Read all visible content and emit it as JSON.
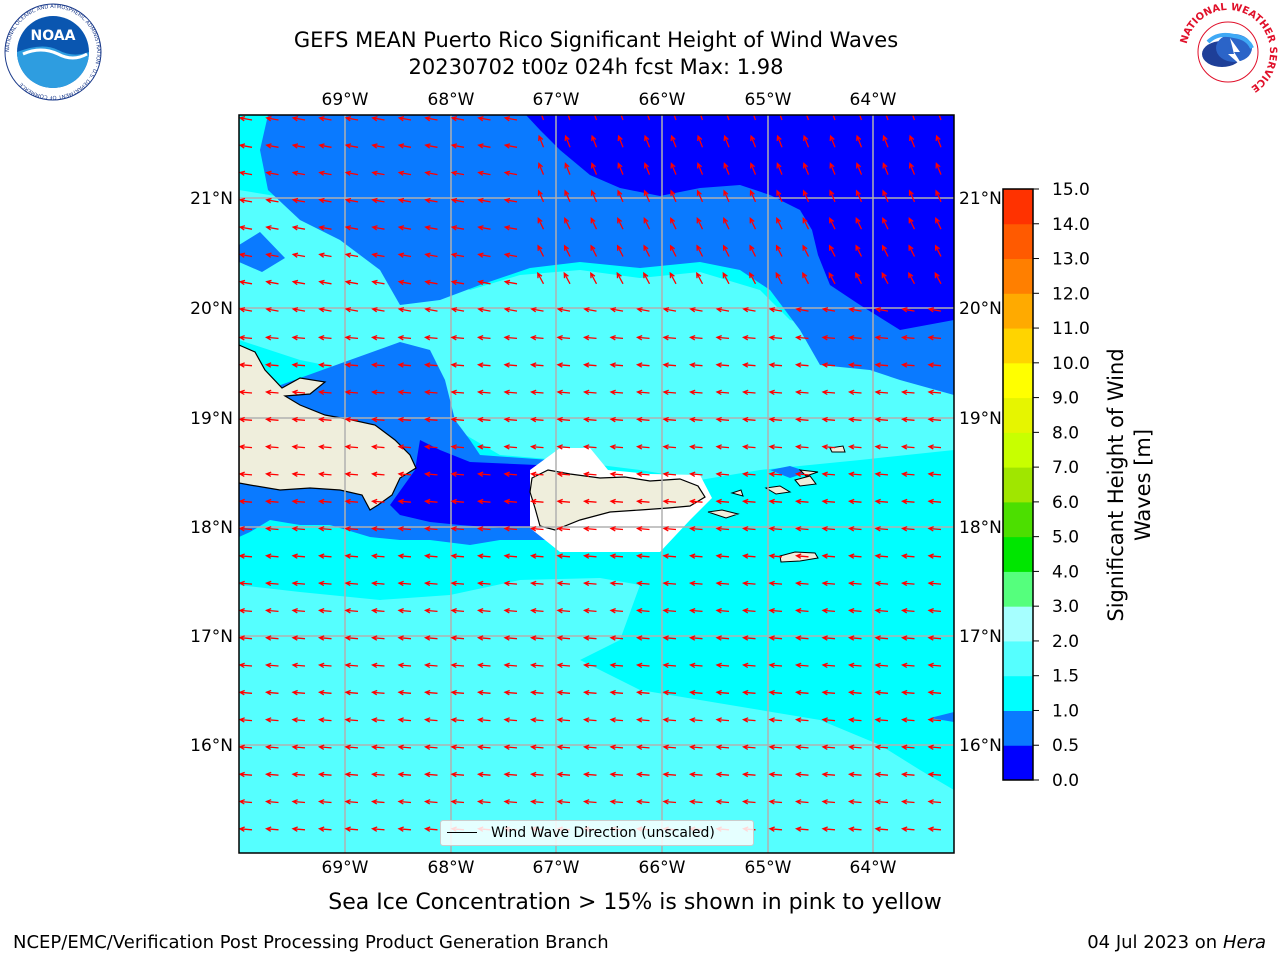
{
  "title_line1": "GEFS MEAN Puerto Rico Significant Height of Wind Waves",
  "title_line2": "20230702 t00z 024h fcst   Max: 1.98",
  "lon_labels": [
    "69°W",
    "68°W",
    "67°W",
    "66°W",
    "65°W",
    "64°W"
  ],
  "lat_labels": [
    "21°N",
    "20°N",
    "19°N",
    "18°N",
    "17°N",
    "16°N"
  ],
  "colorbar": {
    "label": "Significant Height of Wind Waves [m]",
    "label_line1": "Significant Height of Wind",
    "label_line2": "Waves [m]",
    "ticks": [
      "0.0",
      "0.5",
      "1.0",
      "1.5",
      "2.0",
      "3.0",
      "4.0",
      "5.0",
      "6.0",
      "7.0",
      "8.0",
      "9.0",
      "10.0",
      "11.0",
      "12.0",
      "13.0",
      "14.0",
      "15.0"
    ],
    "colors": [
      "#0000ff",
      "#0a7aff",
      "#00ffff",
      "#55ffff",
      "#a6ffff",
      "#55ff7d",
      "#00e600",
      "#4cdf00",
      "#a0e600",
      "#c8ff00",
      "#e6f500",
      "#ffff00",
      "#ffd400",
      "#ffaa00",
      "#ff7f00",
      "#ff5a00",
      "#ff3200",
      "#ff0000"
    ]
  },
  "legend_label": "Wind Wave Direction (unscaled)",
  "note": "Sea Ice Concentration > 15% is shown in pink to yellow",
  "footer_left": "NCEP/EMC/Verification Post Processing Product Generation Branch",
  "footer_right_date": "04 Jul 2023 on",
  "footer_right_host": "Hera",
  "noaa_logo_text": "NOAA",
  "noaa_ring_text": "NATIONAL OCEANIC AND ATMOSPHERIC ADMINISTRATION · U.S. DEPARTMENT OF COMMERCE",
  "nws_ring_text": "NATIONAL WEATHER SERVICE",
  "colors": {
    "arrow": "#ff0000",
    "land": "#efeedc",
    "grid": "#b0b0b0"
  }
}
